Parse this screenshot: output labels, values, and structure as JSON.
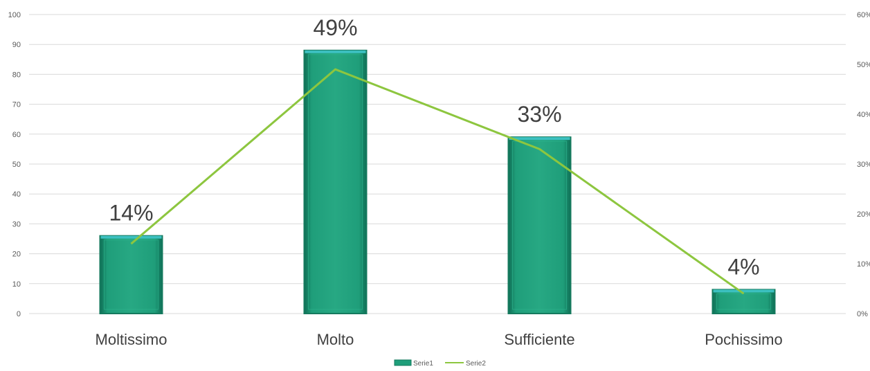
{
  "chart_data": {
    "type": "bar",
    "categories": [
      "Moltissimo",
      "Molto",
      "Sufficiente",
      "Pochissimo"
    ],
    "series": [
      {
        "name": "Serie1",
        "type": "bar",
        "axis": "left",
        "values": [
          26,
          88,
          59,
          8
        ],
        "data_labels": [
          "14%",
          "49%",
          "33%",
          "4%"
        ]
      },
      {
        "name": "Serie2",
        "type": "line",
        "axis": "right",
        "values": [
          0.14,
          0.49,
          0.33,
          0.04
        ]
      }
    ],
    "ylim": [
      0,
      100
    ],
    "y_ticks": [
      "0",
      "10",
      "20",
      "30",
      "40",
      "50",
      "60",
      "70",
      "80",
      "90",
      "100"
    ],
    "y2lim": [
      0,
      0.6
    ],
    "y2_ticks": [
      "0%",
      "10%",
      "20%",
      "30%",
      "40%",
      "50%",
      "60%"
    ],
    "grid": true,
    "legend": "bottom-center",
    "colors": {
      "bar_fill": "#1f9e7a",
      "bar_edge": "#157a5e",
      "bar_top": "#3cc0c0",
      "line": "#8dc63f",
      "grid": "#d9d9d9"
    }
  }
}
